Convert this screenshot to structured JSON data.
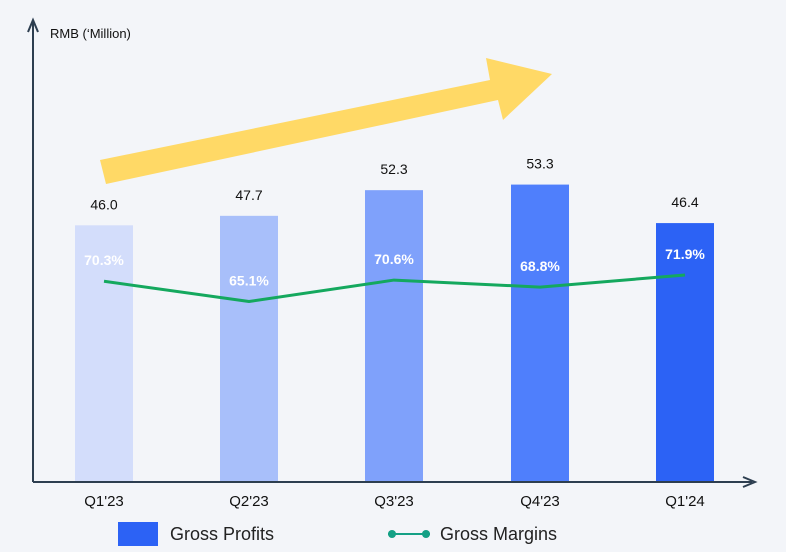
{
  "chart_data": {
    "type": "bar",
    "ylabel": "RMB (‘Million)",
    "categories": [
      "Q1'23",
      "Q2'23",
      "Q3'23",
      "Q4'23",
      "Q1'24"
    ],
    "series": [
      {
        "name": "Gross Profits",
        "type": "bar",
        "values": [
          46.0,
          47.7,
          52.3,
          53.3,
          46.4
        ],
        "labels": [
          "46.0",
          "47.7",
          "52.3",
          "53.3",
          "46.4"
        ],
        "colors": [
          "#d3ddfb",
          "#a8bffa",
          "#7fa1fb",
          "#4f7ffc",
          "#2c62f5"
        ]
      },
      {
        "name": "Gross Margins",
        "type": "line",
        "values": [
          70.3,
          65.1,
          70.6,
          68.8,
          71.9
        ],
        "labels": [
          "70.3%",
          "65.1%",
          "70.6%",
          "68.8%",
          "71.9%"
        ],
        "color": "#14a85e"
      }
    ],
    "trend_arrow_color": "#ffd966",
    "axis_color": "#2d3e50"
  },
  "legend": {
    "bar_label": "Gross Profits",
    "bar_color": "#2c62f5",
    "line_label": "Gross Margins",
    "line_color": "#14a085"
  }
}
